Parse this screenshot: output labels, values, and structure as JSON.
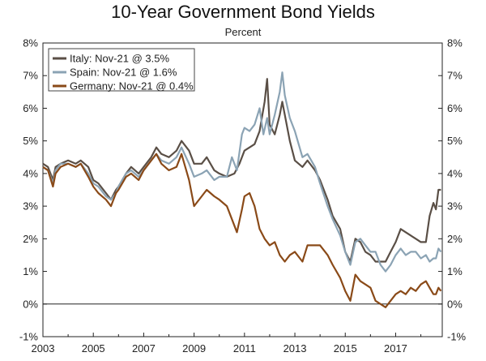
{
  "chart_data": {
    "type": "line",
    "title": "10-Year Government Bond Yields",
    "subtitle": "Percent",
    "xlabel": "",
    "ylabel": "Percent",
    "xlim": [
      2003,
      2018.85
    ],
    "ylim": [
      -1,
      8
    ],
    "yticks": [
      "8%",
      "7%",
      "6%",
      "5%",
      "4%",
      "3%",
      "2%",
      "1%",
      "0%",
      "-1%"
    ],
    "ytick_values": [
      8,
      7,
      6,
      5,
      4,
      3,
      2,
      1,
      0,
      -1
    ],
    "xticks": [
      "2003",
      "2005",
      "2007",
      "2009",
      "2011",
      "2013",
      "2015",
      "2017"
    ],
    "xtick_values": [
      2003,
      2005,
      2007,
      2009,
      2011,
      2013,
      2015,
      2017
    ],
    "zero_line": true,
    "legend_position": "top-left",
    "series": [
      {
        "name": "Italy: Nov-21 @ 3.5%",
        "color": "#5a4f46",
        "points": [
          [
            2003.0,
            4.3
          ],
          [
            2003.2,
            4.2
          ],
          [
            2003.4,
            3.8
          ],
          [
            2003.5,
            4.2
          ],
          [
            2003.7,
            4.3
          ],
          [
            2004.0,
            4.4
          ],
          [
            2004.3,
            4.3
          ],
          [
            2004.5,
            4.4
          ],
          [
            2004.8,
            4.2
          ],
          [
            2005.0,
            3.8
          ],
          [
            2005.2,
            3.7
          ],
          [
            2005.5,
            3.4
          ],
          [
            2005.7,
            3.2
          ],
          [
            2005.9,
            3.5
          ],
          [
            2006.0,
            3.6
          ],
          [
            2006.3,
            4.0
          ],
          [
            2006.5,
            4.2
          ],
          [
            2006.8,
            4.0
          ],
          [
            2007.0,
            4.2
          ],
          [
            2007.3,
            4.5
          ],
          [
            2007.5,
            4.8
          ],
          [
            2007.7,
            4.6
          ],
          [
            2008.0,
            4.5
          ],
          [
            2008.3,
            4.7
          ],
          [
            2008.5,
            5.0
          ],
          [
            2008.8,
            4.7
          ],
          [
            2009.0,
            4.3
          ],
          [
            2009.3,
            4.3
          ],
          [
            2009.5,
            4.5
          ],
          [
            2009.8,
            4.1
          ],
          [
            2010.0,
            4.0
          ],
          [
            2010.3,
            3.9
          ],
          [
            2010.6,
            4.0
          ],
          [
            2010.8,
            4.3
          ],
          [
            2011.0,
            4.7
          ],
          [
            2011.2,
            4.8
          ],
          [
            2011.4,
            4.9
          ],
          [
            2011.6,
            5.3
          ],
          [
            2011.8,
            6.2
          ],
          [
            2011.9,
            6.9
          ],
          [
            2012.0,
            5.5
          ],
          [
            2012.2,
            5.2
          ],
          [
            2012.4,
            5.8
          ],
          [
            2012.5,
            6.2
          ],
          [
            2012.6,
            5.8
          ],
          [
            2012.8,
            5.0
          ],
          [
            2013.0,
            4.4
          ],
          [
            2013.3,
            4.2
          ],
          [
            2013.5,
            4.4
          ],
          [
            2013.8,
            4.1
          ],
          [
            2014.0,
            3.8
          ],
          [
            2014.3,
            3.2
          ],
          [
            2014.5,
            2.7
          ],
          [
            2014.8,
            2.3
          ],
          [
            2015.0,
            1.6
          ],
          [
            2015.2,
            1.3
          ],
          [
            2015.4,
            2.0
          ],
          [
            2015.6,
            1.9
          ],
          [
            2015.8,
            1.6
          ],
          [
            2016.0,
            1.5
          ],
          [
            2016.2,
            1.3
          ],
          [
            2016.4,
            1.3
          ],
          [
            2016.6,
            1.3
          ],
          [
            2016.8,
            1.6
          ],
          [
            2017.0,
            1.9
          ],
          [
            2017.2,
            2.3
          ],
          [
            2017.4,
            2.2
          ],
          [
            2017.6,
            2.1
          ],
          [
            2017.8,
            2.0
          ],
          [
            2018.0,
            1.9
          ],
          [
            2018.2,
            1.9
          ],
          [
            2018.35,
            2.7
          ],
          [
            2018.5,
            3.1
          ],
          [
            2018.6,
            2.9
          ],
          [
            2018.7,
            3.5
          ],
          [
            2018.8,
            3.5
          ]
        ]
      },
      {
        "name": "Spain: Nov-21 @ 1.6%",
        "color": "#8ba3b4",
        "points": [
          [
            2003.0,
            4.2
          ],
          [
            2003.2,
            4.1
          ],
          [
            2003.4,
            3.7
          ],
          [
            2003.5,
            4.1
          ],
          [
            2003.7,
            4.3
          ],
          [
            2004.0,
            4.3
          ],
          [
            2004.3,
            4.2
          ],
          [
            2004.5,
            4.3
          ],
          [
            2004.8,
            4.0
          ],
          [
            2005.0,
            3.7
          ],
          [
            2005.2,
            3.6
          ],
          [
            2005.5,
            3.3
          ],
          [
            2005.7,
            3.2
          ],
          [
            2005.9,
            3.4
          ],
          [
            2006.0,
            3.6
          ],
          [
            2006.3,
            4.0
          ],
          [
            2006.5,
            4.1
          ],
          [
            2006.8,
            3.9
          ],
          [
            2007.0,
            4.1
          ],
          [
            2007.3,
            4.4
          ],
          [
            2007.5,
            4.6
          ],
          [
            2007.7,
            4.4
          ],
          [
            2008.0,
            4.3
          ],
          [
            2008.3,
            4.5
          ],
          [
            2008.5,
            4.8
          ],
          [
            2008.8,
            4.3
          ],
          [
            2009.0,
            3.9
          ],
          [
            2009.3,
            4.0
          ],
          [
            2009.5,
            4.1
          ],
          [
            2009.8,
            3.8
          ],
          [
            2010.0,
            3.9
          ],
          [
            2010.3,
            3.9
          ],
          [
            2010.5,
            4.5
          ],
          [
            2010.7,
            4.1
          ],
          [
            2010.9,
            5.2
          ],
          [
            2011.0,
            5.4
          ],
          [
            2011.2,
            5.3
          ],
          [
            2011.4,
            5.5
          ],
          [
            2011.6,
            6.0
          ],
          [
            2011.75,
            5.2
          ],
          [
            2011.9,
            5.7
          ],
          [
            2012.0,
            5.2
          ],
          [
            2012.2,
            5.8
          ],
          [
            2012.4,
            6.5
          ],
          [
            2012.5,
            7.1
          ],
          [
            2012.6,
            6.4
          ],
          [
            2012.8,
            5.7
          ],
          [
            2013.0,
            5.3
          ],
          [
            2013.3,
            4.5
          ],
          [
            2013.5,
            4.6
          ],
          [
            2013.8,
            4.2
          ],
          [
            2014.0,
            3.7
          ],
          [
            2014.3,
            3.0
          ],
          [
            2014.5,
            2.6
          ],
          [
            2014.8,
            2.1
          ],
          [
            2015.0,
            1.6
          ],
          [
            2015.2,
            1.2
          ],
          [
            2015.4,
            1.9
          ],
          [
            2015.6,
            2.0
          ],
          [
            2015.8,
            1.8
          ],
          [
            2016.0,
            1.6
          ],
          [
            2016.2,
            1.6
          ],
          [
            2016.4,
            1.2
          ],
          [
            2016.6,
            1.0
          ],
          [
            2016.8,
            1.2
          ],
          [
            2017.0,
            1.5
          ],
          [
            2017.2,
            1.7
          ],
          [
            2017.4,
            1.5
          ],
          [
            2017.6,
            1.6
          ],
          [
            2017.8,
            1.6
          ],
          [
            2018.0,
            1.4
          ],
          [
            2018.2,
            1.5
          ],
          [
            2018.35,
            1.3
          ],
          [
            2018.5,
            1.4
          ],
          [
            2018.6,
            1.4
          ],
          [
            2018.7,
            1.7
          ],
          [
            2018.8,
            1.6
          ]
        ]
      },
      {
        "name": "Germany: Nov-21 @ 0.4%",
        "color": "#8a4a18",
        "points": [
          [
            2003.0,
            4.2
          ],
          [
            2003.2,
            4.1
          ],
          [
            2003.4,
            3.6
          ],
          [
            2003.5,
            4.0
          ],
          [
            2003.7,
            4.2
          ],
          [
            2004.0,
            4.3
          ],
          [
            2004.3,
            4.2
          ],
          [
            2004.5,
            4.3
          ],
          [
            2004.8,
            3.9
          ],
          [
            2005.0,
            3.6
          ],
          [
            2005.2,
            3.4
          ],
          [
            2005.5,
            3.2
          ],
          [
            2005.7,
            3.0
          ],
          [
            2005.9,
            3.4
          ],
          [
            2006.0,
            3.5
          ],
          [
            2006.3,
            3.9
          ],
          [
            2006.5,
            4.0
          ],
          [
            2006.8,
            3.8
          ],
          [
            2007.0,
            4.1
          ],
          [
            2007.3,
            4.4
          ],
          [
            2007.5,
            4.6
          ],
          [
            2007.7,
            4.3
          ],
          [
            2008.0,
            4.1
          ],
          [
            2008.3,
            4.2
          ],
          [
            2008.5,
            4.6
          ],
          [
            2008.8,
            3.8
          ],
          [
            2009.0,
            3.0
          ],
          [
            2009.3,
            3.3
          ],
          [
            2009.5,
            3.5
          ],
          [
            2009.8,
            3.3
          ],
          [
            2010.0,
            3.2
          ],
          [
            2010.3,
            3.0
          ],
          [
            2010.5,
            2.6
          ],
          [
            2010.7,
            2.2
          ],
          [
            2010.9,
            2.9
          ],
          [
            2011.0,
            3.3
          ],
          [
            2011.2,
            3.4
          ],
          [
            2011.4,
            3.0
          ],
          [
            2011.6,
            2.3
          ],
          [
            2011.8,
            2.0
          ],
          [
            2012.0,
            1.8
          ],
          [
            2012.2,
            1.9
          ],
          [
            2012.4,
            1.5
          ],
          [
            2012.6,
            1.3
          ],
          [
            2012.8,
            1.5
          ],
          [
            2013.0,
            1.6
          ],
          [
            2013.3,
            1.3
          ],
          [
            2013.5,
            1.8
          ],
          [
            2013.8,
            1.8
          ],
          [
            2014.0,
            1.8
          ],
          [
            2014.3,
            1.5
          ],
          [
            2014.5,
            1.2
          ],
          [
            2014.8,
            0.8
          ],
          [
            2015.0,
            0.4
          ],
          [
            2015.2,
            0.1
          ],
          [
            2015.4,
            0.9
          ],
          [
            2015.6,
            0.7
          ],
          [
            2015.8,
            0.6
          ],
          [
            2016.0,
            0.5
          ],
          [
            2016.2,
            0.1
          ],
          [
            2016.4,
            0.0
          ],
          [
            2016.6,
            -0.1
          ],
          [
            2016.8,
            0.1
          ],
          [
            2017.0,
            0.3
          ],
          [
            2017.2,
            0.4
          ],
          [
            2017.4,
            0.3
          ],
          [
            2017.6,
            0.5
          ],
          [
            2017.8,
            0.4
          ],
          [
            2018.0,
            0.6
          ],
          [
            2018.2,
            0.7
          ],
          [
            2018.35,
            0.5
          ],
          [
            2018.5,
            0.3
          ],
          [
            2018.6,
            0.3
          ],
          [
            2018.7,
            0.5
          ],
          [
            2018.8,
            0.4
          ]
        ]
      }
    ]
  }
}
